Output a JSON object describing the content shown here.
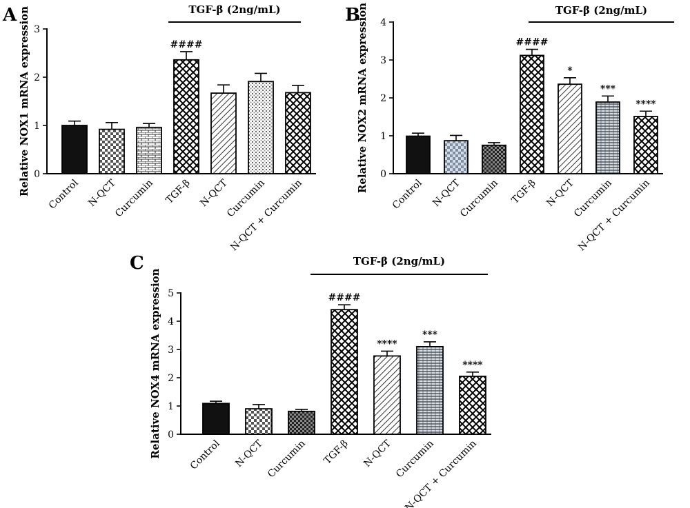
{
  "chart_data": [
    {
      "panel": "A",
      "type": "bar",
      "ylabel": "Relative NOX1 mRNA expression",
      "ylim": [
        0,
        3
      ],
      "yticks": [
        "0",
        "1",
        "2",
        "3"
      ],
      "group_label": "TGF-β (2ng/mL)",
      "categories": [
        "Control",
        "N-QCT",
        "Curcumin",
        "TGF-β",
        "N-QCT",
        "Curcumin",
        "N-QCT + Curcumin"
      ],
      "values": [
        1.0,
        0.92,
        0.96,
        2.36,
        1.67,
        1.91,
        1.68
      ],
      "errors": [
        0.09,
        0.14,
        0.08,
        0.17,
        0.17,
        0.17,
        0.15
      ],
      "annotations": [
        "",
        "",
        "",
        "####",
        "",
        "",
        ""
      ],
      "patterns": [
        "solid",
        "checker",
        "brick",
        "diamond",
        "diag",
        "dots",
        "diamond"
      ]
    },
    {
      "panel": "B",
      "type": "bar",
      "ylabel": "Relative NOX2 mRNA expression",
      "ylim": [
        0,
        4
      ],
      "yticks": [
        "0",
        "1",
        "2",
        "3",
        "4"
      ],
      "group_label": "TGF-β (2ng/mL)",
      "categories": [
        "Control",
        "N-QCT",
        "Curcumin",
        "TGF-β",
        "N-QCT",
        "Curcumin",
        "N-QCT + Curcumin"
      ],
      "values": [
        0.99,
        0.87,
        0.75,
        3.12,
        2.36,
        1.89,
        1.51
      ],
      "errors": [
        0.08,
        0.14,
        0.07,
        0.16,
        0.17,
        0.16,
        0.14
      ],
      "annotations": [
        "",
        "",
        "",
        "####",
        "*",
        "***",
        "****"
      ],
      "patterns": [
        "solid",
        "tiles",
        "darkchecker",
        "diamond",
        "diag",
        "hstripe",
        "diamond"
      ]
    },
    {
      "panel": "C",
      "type": "bar",
      "ylabel": "Relative NOX4 mRNA expression",
      "ylim": [
        0,
        5
      ],
      "yticks": [
        "0",
        "1",
        "2",
        "3",
        "4",
        "5"
      ],
      "group_label": "TGF-β (2ng/mL)",
      "categories": [
        "Control",
        "N-QCT",
        "Curcumin",
        "TGF-β",
        "N-QCT",
        "Curcumin",
        "N-QCT + Curcumin"
      ],
      "values": [
        1.09,
        0.9,
        0.81,
        4.41,
        2.77,
        3.1,
        2.05
      ],
      "errors": [
        0.08,
        0.15,
        0.07,
        0.17,
        0.17,
        0.17,
        0.15
      ],
      "annotations": [
        "",
        "",
        "",
        "####",
        "****",
        "***",
        "****"
      ],
      "patterns": [
        "solid",
        "checker",
        "darkchecker",
        "diamond",
        "diag",
        "hstripe",
        "diamond"
      ]
    }
  ]
}
